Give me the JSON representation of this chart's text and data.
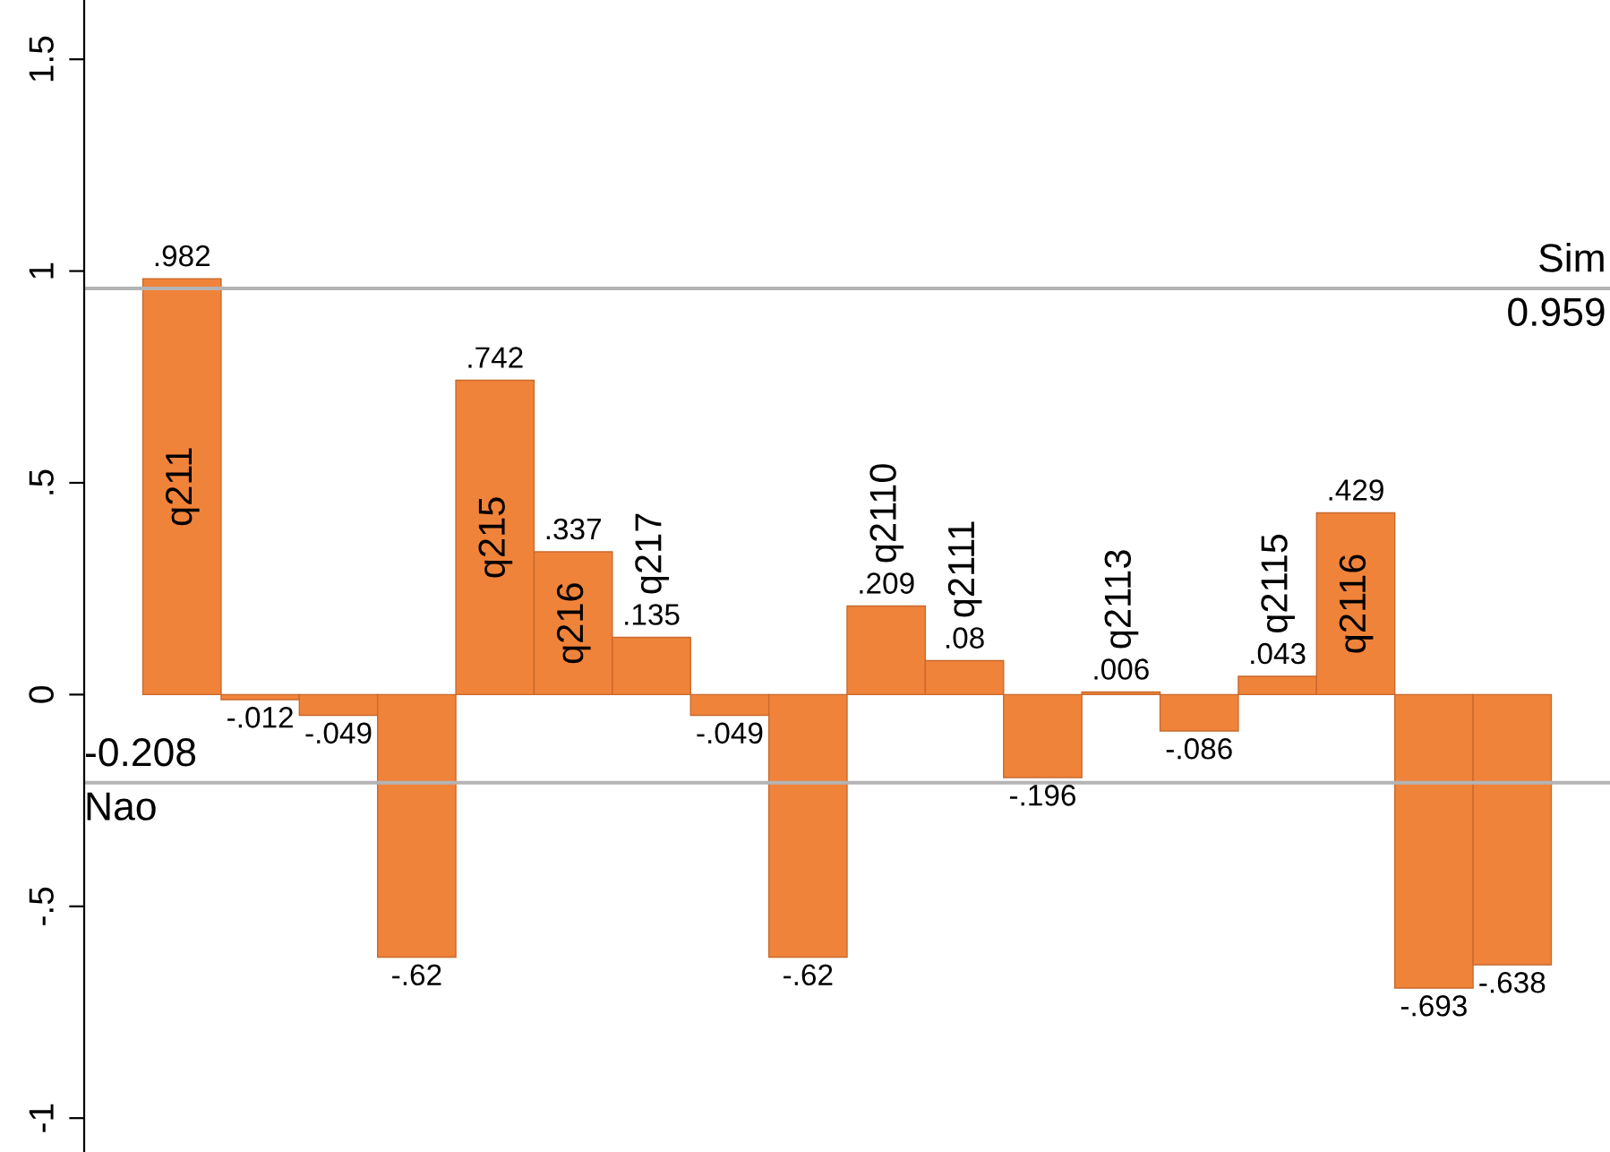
{
  "chart_data": {
    "type": "bar",
    "categories": [
      "q211",
      null,
      null,
      null,
      "q215",
      "q216",
      "q217",
      null,
      null,
      "q2110",
      "q2111",
      null,
      "q2113",
      null,
      "q2115",
      "q2116",
      null,
      null
    ],
    "values": [
      0.982,
      -0.012,
      -0.049,
      -0.62,
      0.742,
      0.337,
      0.135,
      -0.049,
      -0.62,
      0.209,
      0.08,
      -0.196,
      0.006,
      -0.086,
      0.043,
      0.429,
      -0.693,
      -0.638
    ],
    "value_labels": [
      ".982",
      "-.012",
      "-.049",
      "-.62",
      ".742",
      ".337",
      ".135",
      "-.049",
      "-.62",
      ".209",
      ".08",
      "-.196",
      ".006",
      "-.086",
      ".043",
      ".429",
      "-.693",
      "-.638"
    ],
    "color": "#f0833a",
    "ylim": [
      -1.08,
      1.64
    ],
    "yticks": [
      {
        "value": -1,
        "label": "-1"
      },
      {
        "value": -0.5,
        "label": "-.5"
      },
      0,
      {
        "value": 0.5,
        "label": ".5"
      },
      1,
      1.5
    ],
    "tick_labels": "y",
    "grid": false,
    "legend": false,
    "ref_lines": [
      {
        "axis": "y",
        "value": 0.959,
        "label": "Sim",
        "color": "#b4b4b4"
      },
      {
        "axis": "y",
        "value": -0.208,
        "label": "Nao",
        "color": "#b4b4b4"
      }
    ],
    "annotations": [
      {
        "text": "0.959",
        "y": 0.959
      },
      {
        "text": "-0.208",
        "y": -0.208
      }
    ]
  }
}
